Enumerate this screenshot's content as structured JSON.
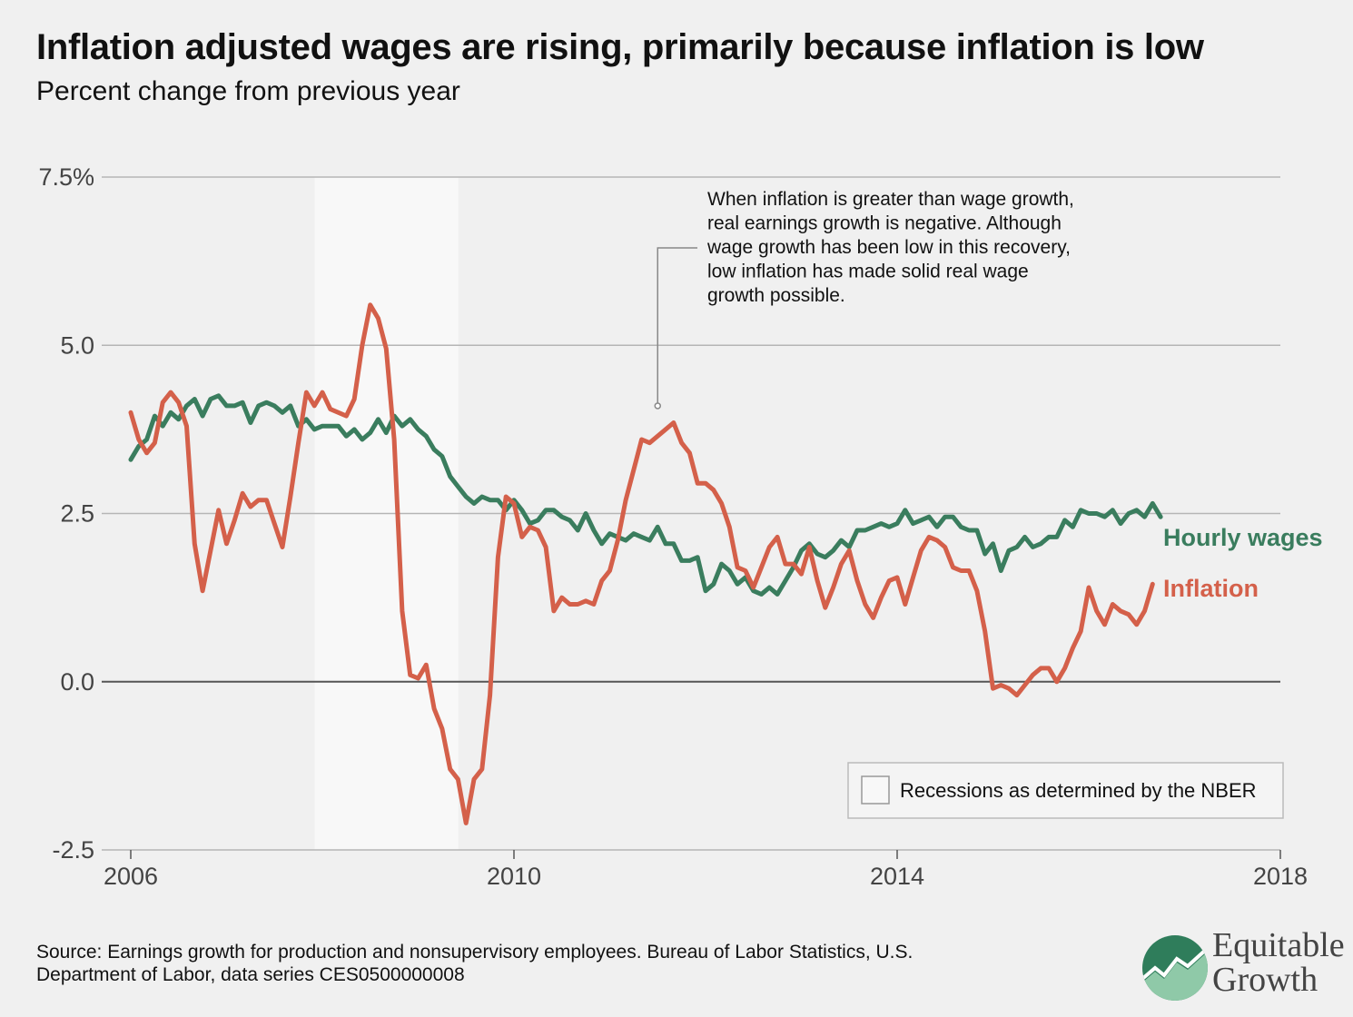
{
  "header": {
    "title": "Inflation adjusted wages are rising, primarily because inflation is low",
    "subtitle": "Percent change from previous year"
  },
  "colors": {
    "wages": "#3a7d5e",
    "inflation": "#d4604a",
    "recession_band": "#f8f8f8",
    "gridline": "#b5b5b5",
    "zeroline": "#555555"
  },
  "chart_data": {
    "type": "line",
    "xlim": [
      2006.0,
      2018.0
    ],
    "ylim": [
      -2.5,
      7.5
    ],
    "x_ticks": [
      2006,
      2010,
      2014,
      2018
    ],
    "x_tick_labels": [
      "2006",
      "2010",
      "2014",
      "2018"
    ],
    "y_ticks": [
      -2.5,
      0.0,
      2.5,
      5.0,
      7.5
    ],
    "y_tick_labels": [
      "-2.5",
      "0.0",
      "2.5",
      "5.0",
      "7.5%"
    ],
    "grid": true,
    "recession": {
      "start": 2007.92,
      "end": 2009.42
    },
    "series": [
      {
        "name": "Hourly wages",
        "start": 2006.0,
        "step": 0.08333,
        "values": [
          3.3,
          3.5,
          3.6,
          3.95,
          3.8,
          4.0,
          3.9,
          4.1,
          4.2,
          3.95,
          4.2,
          4.25,
          4.1,
          4.1,
          4.15,
          3.85,
          4.1,
          4.15,
          4.1,
          4.0,
          4.1,
          3.8,
          3.9,
          3.75,
          3.8,
          3.8,
          3.8,
          3.65,
          3.75,
          3.6,
          3.7,
          3.9,
          3.7,
          3.95,
          3.8,
          3.9,
          3.75,
          3.65,
          3.45,
          3.35,
          3.05,
          2.9,
          2.75,
          2.65,
          2.75,
          2.7,
          2.7,
          2.55,
          2.7,
          2.55,
          2.35,
          2.4,
          2.55,
          2.55,
          2.45,
          2.4,
          2.25,
          2.5,
          2.25,
          2.05,
          2.2,
          2.15,
          2.1,
          2.2,
          2.15,
          2.1,
          2.3,
          2.05,
          2.05,
          1.8,
          1.8,
          1.85,
          1.35,
          1.45,
          1.75,
          1.65,
          1.45,
          1.55,
          1.35,
          1.3,
          1.4,
          1.3,
          1.5,
          1.7,
          1.95,
          2.05,
          1.9,
          1.85,
          1.95,
          2.1,
          2.0,
          2.25,
          2.25,
          2.3,
          2.35,
          2.3,
          2.35,
          2.55,
          2.35,
          2.4,
          2.45,
          2.3,
          2.45,
          2.45,
          2.3,
          2.25,
          2.25,
          1.9,
          2.05,
          1.65,
          1.95,
          2.0,
          2.15,
          2.0,
          2.05,
          2.15,
          2.15,
          2.4,
          2.3,
          2.55,
          2.5,
          2.5,
          2.45,
          2.55,
          2.35,
          2.5,
          2.55,
          2.45,
          2.65,
          2.45
        ]
      },
      {
        "name": "Inflation",
        "start": 2006.0,
        "step": 0.08333,
        "values": [
          4.0,
          3.6,
          3.4,
          3.55,
          4.15,
          4.3,
          4.15,
          3.8,
          2.05,
          1.35,
          1.95,
          2.55,
          2.05,
          2.4,
          2.8,
          2.6,
          2.7,
          2.7,
          2.35,
          2.0,
          2.75,
          3.55,
          4.3,
          4.1,
          4.3,
          4.05,
          4.0,
          3.95,
          4.2,
          5.0,
          5.6,
          5.4,
          4.95,
          3.6,
          1.05,
          0.1,
          0.05,
          0.25,
          -0.4,
          -0.7,
          -1.3,
          -1.45,
          -2.1,
          -1.45,
          -1.3,
          -0.2,
          1.85,
          2.75,
          2.65,
          2.15,
          2.3,
          2.25,
          2.0,
          1.05,
          1.25,
          1.15,
          1.15,
          1.2,
          1.15,
          1.5,
          1.65,
          2.1,
          2.7,
          3.15,
          3.6,
          3.55,
          3.65,
          3.75,
          3.85,
          3.55,
          3.4,
          2.95,
          2.95,
          2.85,
          2.65,
          2.3,
          1.7,
          1.65,
          1.4,
          1.7,
          2.0,
          2.15,
          1.75,
          1.75,
          1.6,
          2.0,
          1.5,
          1.1,
          1.4,
          1.75,
          1.95,
          1.5,
          1.15,
          0.95,
          1.25,
          1.5,
          1.55,
          1.15,
          1.55,
          1.95,
          2.15,
          2.1,
          2.0,
          1.7,
          1.65,
          1.65,
          1.35,
          0.75,
          -0.1,
          -0.05,
          -0.1,
          -0.2,
          -0.05,
          0.1,
          0.2,
          0.2,
          0.0,
          0.2,
          0.5,
          0.75,
          1.4,
          1.05,
          0.85,
          1.15,
          1.05,
          1.0,
          0.85,
          1.05,
          1.45
        ]
      }
    ],
    "series_labels": [
      "Hourly wages",
      "Inflation"
    ],
    "annotation": {
      "lines": [
        "When inflation is greater than wage growth,",
        "real earnings growth is negative. Although",
        "wage growth has been low in this recovery,",
        "low inflation has made solid real wage",
        "growth possible."
      ],
      "anchor": [
        2011.5,
        4.1
      ]
    },
    "legend": {
      "label": "Recessions as determined by the NBER",
      "position": "bottom-right"
    }
  },
  "footer": {
    "source_line1": "Source: Earnings growth for production and nonsupervisory employees. Bureau of Labor Statistics, U.S.",
    "source_line2": "Department of Labor, data series CES0500000008"
  },
  "logo": {
    "line1": "Equitable",
    "line2": "Growth",
    "icon": "rising-chart-logo-icon"
  }
}
